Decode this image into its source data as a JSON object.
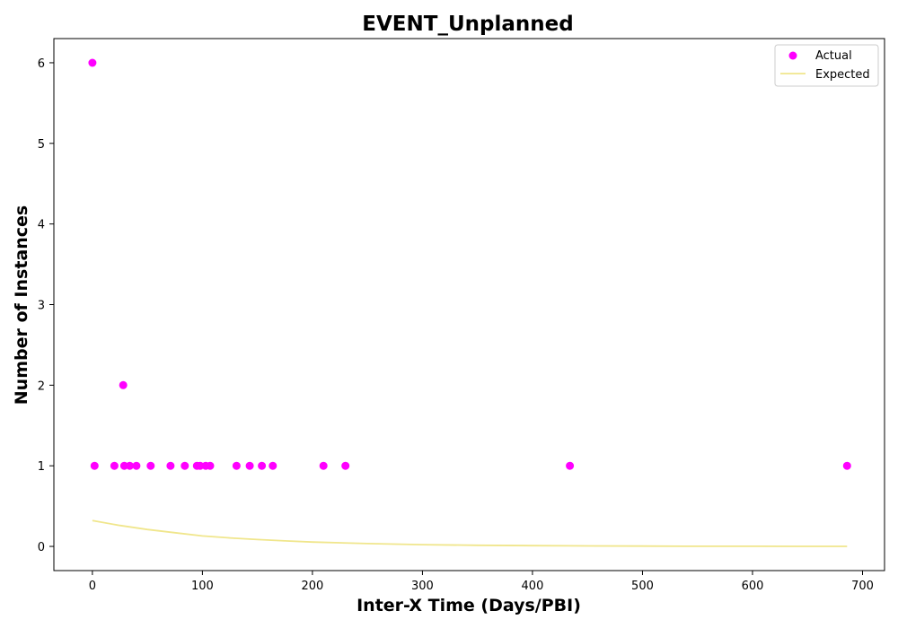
{
  "chart_data": {
    "type": "scatter",
    "title": "EVENT_Unplanned",
    "xlabel": "Inter-X Time (Days/PBI)",
    "ylabel": "Number of Instances",
    "xlim": [
      -35,
      720
    ],
    "ylim": [
      -0.3,
      6.3
    ],
    "xticks": [
      0,
      100,
      200,
      300,
      400,
      500,
      600,
      700
    ],
    "yticks": [
      0,
      1,
      2,
      3,
      4,
      5,
      6
    ],
    "grid": false,
    "legend_position": "top-right",
    "series": [
      {
        "name": "Actual",
        "kind": "scatter",
        "color": "#ff00ff",
        "points": [
          [
            0,
            6
          ],
          [
            2,
            1
          ],
          [
            20,
            1
          ],
          [
            28,
            2
          ],
          [
            29,
            1
          ],
          [
            34,
            1
          ],
          [
            40,
            1
          ],
          [
            53,
            1
          ],
          [
            71,
            1
          ],
          [
            84,
            1
          ],
          [
            95,
            1
          ],
          [
            98,
            1
          ],
          [
            103,
            1
          ],
          [
            107,
            1
          ],
          [
            131,
            1
          ],
          [
            143,
            1
          ],
          [
            154,
            1
          ],
          [
            164,
            1
          ],
          [
            210,
            1
          ],
          [
            230,
            1
          ],
          [
            434,
            1
          ],
          [
            686,
            1
          ]
        ]
      },
      {
        "name": "Expected",
        "kind": "line",
        "color": "#f0e68c",
        "points": [
          [
            0,
            0.32
          ],
          [
            25,
            0.26
          ],
          [
            50,
            0.21
          ],
          [
            75,
            0.17
          ],
          [
            100,
            0.13
          ],
          [
            125,
            0.105
          ],
          [
            150,
            0.085
          ],
          [
            175,
            0.068
          ],
          [
            200,
            0.054
          ],
          [
            250,
            0.035
          ],
          [
            300,
            0.022
          ],
          [
            350,
            0.014
          ],
          [
            400,
            0.009
          ],
          [
            450,
            0.006
          ],
          [
            500,
            0.004
          ],
          [
            550,
            0.002
          ],
          [
            600,
            0.0015
          ],
          [
            650,
            0.001
          ],
          [
            686,
            0.0008
          ]
        ]
      }
    ]
  }
}
